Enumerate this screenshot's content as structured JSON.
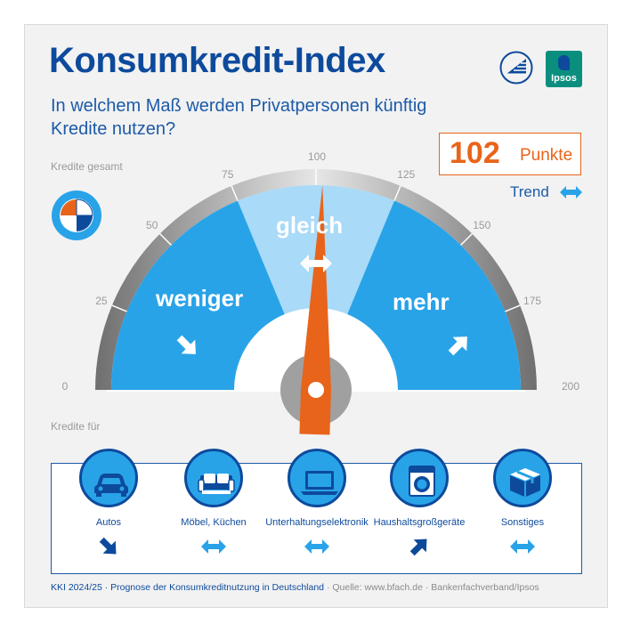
{
  "title": "Konsumkredit-Index",
  "subtitle": "In welchem Maß werden Privatpersonen künftig Kredite nutzen?",
  "logos": {
    "ipsos": "Ipsos"
  },
  "score": {
    "value": "102",
    "unit": "Punkte"
  },
  "trend": {
    "label": "Trend",
    "direction": "gleich"
  },
  "section_labels": {
    "total": "Kredite gesamt",
    "for": "Kredite für"
  },
  "colors": {
    "navy": "#0d4a9c",
    "blue": "#29a3e8",
    "light_blue": "#a9daf7",
    "orange": "#e8641b"
  },
  "chart_data": {
    "type": "gauge",
    "value": 102,
    "scale": [
      0,
      200
    ],
    "ticks": [
      "0",
      "25",
      "50",
      "75",
      "100",
      "125",
      "150",
      "175",
      "200"
    ],
    "segments": [
      {
        "label": "weniger",
        "range": [
          0,
          75
        ],
        "arrow": "down"
      },
      {
        "label": "gleich",
        "range": [
          75,
          125
        ],
        "arrow": "both"
      },
      {
        "label": "mehr",
        "range": [
          125,
          200
        ],
        "arrow": "up"
      }
    ]
  },
  "categories": [
    {
      "label": "Autos",
      "icon": "car-icon",
      "trend": "down"
    },
    {
      "label": "Möbel, Küchen",
      "icon": "sofa-icon",
      "trend": "both"
    },
    {
      "label": "Unterhaltungselektronik",
      "icon": "laptop-icon",
      "trend": "both"
    },
    {
      "label": "Haushaltsgroßgeräte",
      "icon": "washing-machine-icon",
      "trend": "up"
    },
    {
      "label": "Sonstiges",
      "icon": "box-icon",
      "trend": "both"
    }
  ],
  "footer": {
    "main": "KKI 2024/25 · Prognose der Konsumkreditnutzung in Deutschland",
    "source": " · Quelle: www.bfach.de · Bankenfachverband/Ipsos"
  }
}
